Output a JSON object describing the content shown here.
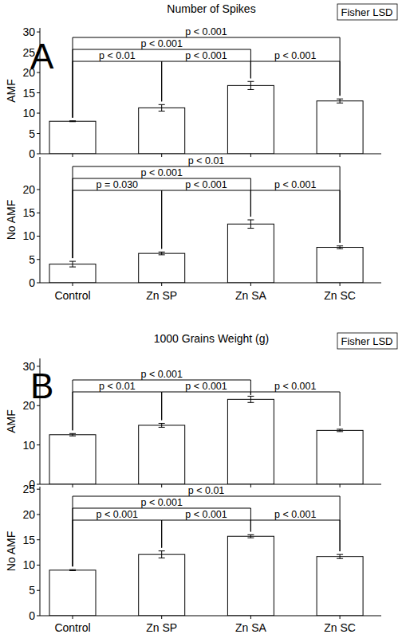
{
  "chart_data": [
    {
      "type": "bar",
      "title": "Number of Spikes",
      "panel_label": "A",
      "method": "Fisher LSD",
      "color": "#ffffff",
      "categories": [
        "Control",
        "Zn SP",
        "Zn SA",
        "Zn SC"
      ],
      "panels": [
        {
          "ylabel": "AMF",
          "values": [
            8.0,
            11.3,
            16.8,
            13.0
          ],
          "errors": [
            0.1,
            0.8,
            1.0,
            0.5
          ],
          "ylim": [
            0,
            31
          ],
          "yticks": [
            0,
            5,
            10,
            15,
            20,
            25,
            30
          ],
          "comparisons": [
            {
              "from": 0,
              "to": 1,
              "label": "p < 0.01"
            },
            {
              "from": 1,
              "to": 2,
              "label": "p < 0.001"
            },
            {
              "from": 2,
              "to": 3,
              "label": "p < 0.001"
            },
            {
              "from": 0,
              "to": 2,
              "label": "p < 0.001"
            },
            {
              "from": 0,
              "to": 3,
              "label": "p < 0.001"
            }
          ]
        },
        {
          "ylabel": "No AMF",
          "values": [
            4.0,
            6.3,
            12.6,
            7.6
          ],
          "errors": [
            0.6,
            0.3,
            0.9,
            0.3
          ],
          "ylim": [
            0,
            27
          ],
          "yticks": [
            0,
            5,
            10,
            15,
            20
          ],
          "comparisons": [
            {
              "from": 0,
              "to": 1,
              "label": "p = 0.030"
            },
            {
              "from": 1,
              "to": 2,
              "label": "p < 0.001"
            },
            {
              "from": 2,
              "to": 3,
              "label": "p < 0.001"
            },
            {
              "from": 0,
              "to": 2,
              "label": "p < 0.001"
            },
            {
              "from": 0,
              "to": 3,
              "label": "p < 0.01"
            }
          ]
        }
      ]
    },
    {
      "type": "bar",
      "title": "1000 Grains Weight (g)",
      "panel_label": "B",
      "method": "Fisher LSD",
      "color": "#ffffff",
      "categories": [
        "Control",
        "Zn SP",
        "Zn SA",
        "Zn SC"
      ],
      "panels": [
        {
          "ylabel": "AMF",
          "values": [
            12.6,
            15.0,
            21.6,
            13.7
          ],
          "errors": [
            0.3,
            0.5,
            0.8,
            0.3
          ],
          "ylim": [
            0,
            32
          ],
          "yticks": [
            0,
            10,
            20,
            30
          ],
          "comparisons": [
            {
              "from": 0,
              "to": 1,
              "label": "p < 0.01"
            },
            {
              "from": 1,
              "to": 2,
              "label": "p < 0.001"
            },
            {
              "from": 2,
              "to": 3,
              "label": "p < 0.001"
            },
            {
              "from": 0,
              "to": 2,
              "label": "p < 0.001"
            }
          ]
        },
        {
          "ylabel": "No AMF",
          "values": [
            9.0,
            12.1,
            15.7,
            11.7
          ],
          "errors": [
            0.1,
            0.7,
            0.3,
            0.4
          ],
          "ylim": [
            0,
            25.5
          ],
          "yticks": [
            0,
            5,
            10,
            15,
            20,
            25
          ],
          "comparisons": [
            {
              "from": 0,
              "to": 1,
              "label": "p < 0.001"
            },
            {
              "from": 1,
              "to": 2,
              "label": "p < 0.001"
            },
            {
              "from": 2,
              "to": 3,
              "label": "p < 0.001"
            },
            {
              "from": 0,
              "to": 2,
              "label": "p < 0.001"
            },
            {
              "from": 0,
              "to": 3,
              "label": "p < 0.01"
            }
          ]
        }
      ]
    }
  ]
}
